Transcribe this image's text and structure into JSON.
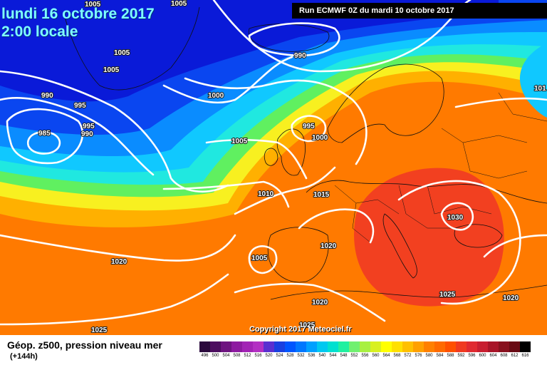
{
  "header": {
    "date": "lundi 16 octobre 2017",
    "time": "2:00 locale",
    "run": "Run ECMWF 0Z du mardi 10 octobre 2017"
  },
  "footer": {
    "title": "Géop. z500, pression niveau mer",
    "subtitle": "(+144h)",
    "copyright": "Copyright 2017 Meteociel.fr"
  },
  "colorbar": {
    "labels": [
      "496",
      "500",
      "504",
      "508",
      "512",
      "516",
      "520",
      "524",
      "528",
      "532",
      "536",
      "540",
      "544",
      "548",
      "552",
      "556",
      "560",
      "564",
      "568",
      "572",
      "576",
      "580",
      "584",
      "588",
      "592",
      "596",
      "600",
      "604",
      "608",
      "612",
      "616"
    ],
    "colors": [
      "#2b0a3d",
      "#4c0d5f",
      "#6e1480",
      "#8d1aa0",
      "#a223b5",
      "#b32fc3",
      "#5a2fd0",
      "#1a3fe0",
      "#0055ff",
      "#0077ff",
      "#00a0ff",
      "#00c8f0",
      "#00e0d0",
      "#20f0a0",
      "#70f070",
      "#a8f040",
      "#d8f020",
      "#ffff00",
      "#ffe000",
      "#ffc000",
      "#ffa000",
      "#ff8000",
      "#ff6a00",
      "#ff5000",
      "#f03a20",
      "#e02a30",
      "#c81e30",
      "#a81428",
      "#88101e",
      "#680a14",
      "#000000"
    ]
  },
  "map_colors": {
    "dark_blue": "#0a1ad8",
    "blue": "#0a46f0",
    "light_blue": "#0a8cff",
    "cyan": "#10c8ff",
    "aqua": "#20e8e0",
    "green": "#60f060",
    "yellow": "#f8f020",
    "orange": "#ffb000",
    "dark_orange": "#ff7a00",
    "red": "#f24020",
    "isobar": "#ffffff"
  },
  "isobars": [
    {
      "text": "1005"
    },
    {
      "text": "1005"
    },
    {
      "text": "1005"
    },
    {
      "text": "1005"
    },
    {
      "text": "990"
    },
    {
      "text": "990"
    },
    {
      "text": "990"
    },
    {
      "text": "985"
    },
    {
      "text": "995"
    },
    {
      "text": "995"
    },
    {
      "text": "995"
    },
    {
      "text": "1000"
    },
    {
      "text": "1000"
    },
    {
      "text": "1005"
    },
    {
      "text": "1010"
    },
    {
      "text": "1015"
    },
    {
      "text": "1020"
    },
    {
      "text": "1020"
    },
    {
      "text": "1020"
    },
    {
      "text": "1005"
    },
    {
      "text": "1025"
    },
    {
      "text": "1030"
    },
    {
      "text": "1025"
    },
    {
      "text": "1025"
    },
    {
      "text": "1020"
    },
    {
      "text": "101"
    }
  ]
}
